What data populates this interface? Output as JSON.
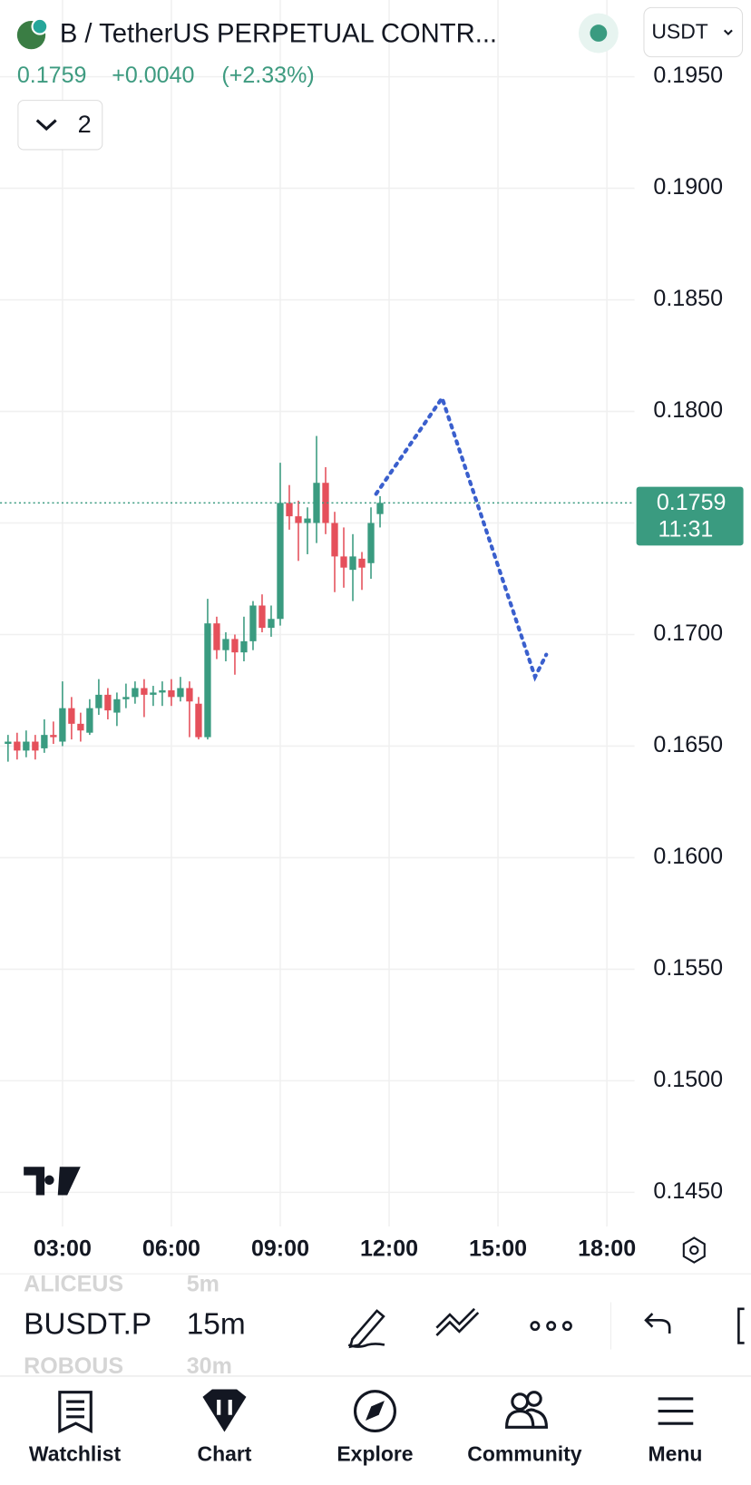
{
  "header": {
    "symbol": "B / TetherUS PERPETUAL CONTR...",
    "currency": "USDT",
    "price": "0.1759",
    "change": "+0.0040",
    "change_pct": "(+2.33%)",
    "indicators": "2"
  },
  "chart_data": {
    "type": "candlestick",
    "up_color": "#3a9b80",
    "down_color": "#e5505b",
    "grid": true,
    "x": [
      1.5,
      1.75,
      2,
      2.25,
      2.5,
      2.75,
      3,
      3.25,
      3.5,
      3.75,
      4,
      4.25,
      4.5,
      4.75,
      5,
      5.25,
      5.5,
      5.75,
      6,
      6.25,
      6.5,
      6.75,
      7,
      7.25,
      7.5,
      7.75,
      8,
      8.25,
      8.5,
      8.75,
      9,
      9.25,
      9.5,
      9.75,
      10,
      10.25,
      10.5,
      10.75,
      11,
      11.25,
      11.5,
      11.75
    ],
    "open": [
      0.1651,
      0.1652,
      0.1648,
      0.1652,
      0.1649,
      0.1655,
      0.1652,
      0.1667,
      0.166,
      0.1656,
      0.1667,
      0.1673,
      0.1665,
      0.1671,
      0.1672,
      0.1676,
      0.1673,
      0.1674,
      0.1675,
      0.1672,
      0.1676,
      0.1669,
      0.1654,
      0.1705,
      0.1693,
      0.1698,
      0.1692,
      0.1697,
      0.1713,
      0.1703,
      0.1707,
      0.1759,
      0.1753,
      0.175,
      0.175,
      0.1768,
      0.175,
      0.1735,
      0.1729,
      0.1734,
      0.1732,
      0.1754
    ],
    "high": [
      0.1655,
      0.1656,
      0.1657,
      0.1655,
      0.1662,
      0.1661,
      0.1679,
      0.1672,
      0.1665,
      0.1671,
      0.168,
      0.1676,
      0.1674,
      0.1678,
      0.1679,
      0.168,
      0.1677,
      0.1679,
      0.168,
      0.1681,
      0.1679,
      0.1672,
      0.1716,
      0.1708,
      0.1701,
      0.17,
      0.1708,
      0.1715,
      0.1718,
      0.1713,
      0.1777,
      0.1767,
      0.176,
      0.1757,
      0.1789,
      0.1775,
      0.1755,
      0.1748,
      0.1745,
      0.1737,
      0.1757,
      0.1762
    ],
    "low": [
      0.1643,
      0.1644,
      0.1645,
      0.1644,
      0.1647,
      0.1651,
      0.165,
      0.1653,
      0.1652,
      0.1655,
      0.1664,
      0.1662,
      0.1659,
      0.1667,
      0.1669,
      0.1663,
      0.1668,
      0.1668,
      0.1668,
      0.167,
      0.1654,
      0.1653,
      0.1653,
      0.1689,
      0.1688,
      0.1682,
      0.1688,
      0.1693,
      0.1701,
      0.1699,
      0.1704,
      0.1747,
      0.1733,
      0.1736,
      0.1741,
      0.1745,
      0.1719,
      0.1721,
      0.1715,
      0.172,
      0.1725,
      0.1748
    ],
    "close": [
      0.1652,
      0.1648,
      0.1652,
      0.1648,
      0.1655,
      0.1654,
      0.1667,
      0.166,
      0.1657,
      0.1667,
      0.1673,
      0.1666,
      0.1671,
      0.1672,
      0.1676,
      0.1673,
      0.1674,
      0.1675,
      0.1672,
      0.1676,
      0.167,
      0.1654,
      0.1705,
      0.1693,
      0.1698,
      0.1692,
      0.1697,
      0.1713,
      0.1703,
      0.1707,
      0.1759,
      0.1753,
      0.175,
      0.1752,
      0.1768,
      0.175,
      0.1735,
      0.173,
      0.1735,
      0.173,
      0.175,
      0.1759
    ],
    "xlim": [
      1.28,
      18.76
    ],
    "ylim": [
      0.14347,
      0.19844
    ],
    "xticks": [
      {
        "value": 3,
        "label": "03:00"
      },
      {
        "value": 6,
        "label": "06:00"
      },
      {
        "value": 9,
        "label": "09:00"
      },
      {
        "value": 12,
        "label": "12:00"
      },
      {
        "value": 15,
        "label": "15:00"
      },
      {
        "value": 18,
        "label": "18:00"
      }
    ],
    "yticks": [
      {
        "value": 0.195,
        "label": "0.1950"
      },
      {
        "value": 0.19,
        "label": "0.1900"
      },
      {
        "value": 0.185,
        "label": "0.1850"
      },
      {
        "value": 0.18,
        "label": "0.1800"
      },
      {
        "value": 0.175,
        "label": "0.1750"
      },
      {
        "value": 0.17,
        "label": "0.1700"
      },
      {
        "value": 0.165,
        "label": "0.1650"
      },
      {
        "value": 0.16,
        "label": "0.1600"
      },
      {
        "value": 0.155,
        "label": "0.1550"
      },
      {
        "value": 0.15,
        "label": "0.1500"
      },
      {
        "value": 0.145,
        "label": "0.1450"
      }
    ],
    "last_price": 0.1759,
    "countdown": "11:31",
    "projection": {
      "color": "#3a5fcd",
      "x": [
        11.64,
        13.46,
        16.02,
        16.33
      ],
      "y": [
        0.1763,
        0.1806,
        0.1681,
        0.1691
      ]
    }
  },
  "toolbar": {
    "symbols": [
      "ALICEUS",
      "BUSDT.P",
      "ROBOUS"
    ],
    "intervals": [
      "5m",
      "15m",
      "30m"
    ]
  },
  "nav": [
    "Watchlist",
    "Chart",
    "Explore",
    "Community",
    "Menu"
  ]
}
